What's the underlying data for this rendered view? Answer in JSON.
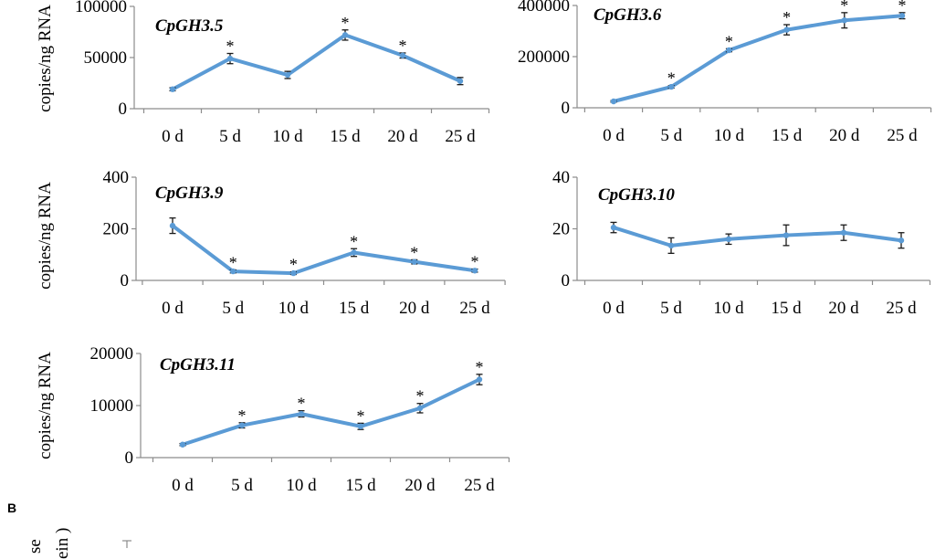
{
  "x_categories": [
    "0 d",
    "5 d",
    "10 d",
    "15 d",
    "20 d",
    "25 d"
  ],
  "y_axis_label": "copies/ng RNA",
  "panel_b": {
    "letter": "B",
    "partial_label_1": "se",
    "partial_label_2": "ein )"
  },
  "colors": {
    "series": "#5b9bd5",
    "axis": "#8c8c8c",
    "error": "#1a1a1a"
  },
  "chart_data": [
    {
      "type": "line",
      "gene": "CpGH3.5",
      "ylim": [
        0,
        100000
      ],
      "yticks": [
        "0",
        "50000",
        "100000"
      ],
      "categories": [
        "0 d",
        "5 d",
        "10 d",
        "15 d",
        "20 d",
        "25 d"
      ],
      "values": [
        19000,
        49000,
        33000,
        72000,
        52000,
        27000
      ],
      "errors": [
        1500,
        5000,
        3500,
        5000,
        2500,
        3500
      ],
      "significant": [
        false,
        true,
        false,
        true,
        true,
        false
      ]
    },
    {
      "type": "line",
      "gene": "CpGH3.6",
      "ylim": [
        0,
        400000
      ],
      "yticks": [
        "0",
        "200000",
        "400000"
      ],
      "categories": [
        "0 d",
        "5 d",
        "10 d",
        "15 d",
        "20 d",
        "25 d"
      ],
      "values": [
        25000,
        82000,
        225000,
        305000,
        342000,
        360000
      ],
      "errors": [
        3000,
        5000,
        6000,
        20000,
        30000,
        12000
      ],
      "significant": [
        false,
        true,
        true,
        true,
        true,
        true
      ]
    },
    {
      "type": "line",
      "gene": "CpGH3.9",
      "ylim": [
        0,
        400
      ],
      "yticks": [
        "0",
        "200",
        "400"
      ],
      "categories": [
        "0 d",
        "5 d",
        "10 d",
        "15 d",
        "20 d",
        "25 d"
      ],
      "values": [
        212,
        35,
        28,
        108,
        72,
        38
      ],
      "errors": [
        30,
        6,
        5,
        15,
        8,
        6
      ],
      "significant": [
        false,
        true,
        true,
        true,
        true,
        true
      ]
    },
    {
      "type": "line",
      "gene": "CpGH3.10",
      "ylim": [
        0,
        40
      ],
      "yticks": [
        "0",
        "20",
        "40"
      ],
      "categories": [
        "0 d",
        "5 d",
        "10 d",
        "15 d",
        "20 d",
        "25 d"
      ],
      "values": [
        20.5,
        13.5,
        16,
        17.5,
        18.5,
        15.5
      ],
      "errors": [
        2,
        3,
        2,
        4,
        3,
        3
      ],
      "significant": [
        false,
        false,
        false,
        false,
        false,
        false
      ]
    },
    {
      "type": "line",
      "gene": "CpGH3.11",
      "ylim": [
        0,
        20000
      ],
      "yticks": [
        "0",
        "10000",
        "20000"
      ],
      "categories": [
        "0 d",
        "5 d",
        "10 d",
        "15 d",
        "20 d",
        "25 d"
      ],
      "values": [
        2500,
        6200,
        8400,
        6000,
        9500,
        15000
      ],
      "errors": [
        200,
        500,
        600,
        600,
        900,
        1000
      ],
      "significant": [
        false,
        true,
        true,
        true,
        true,
        true
      ]
    }
  ]
}
